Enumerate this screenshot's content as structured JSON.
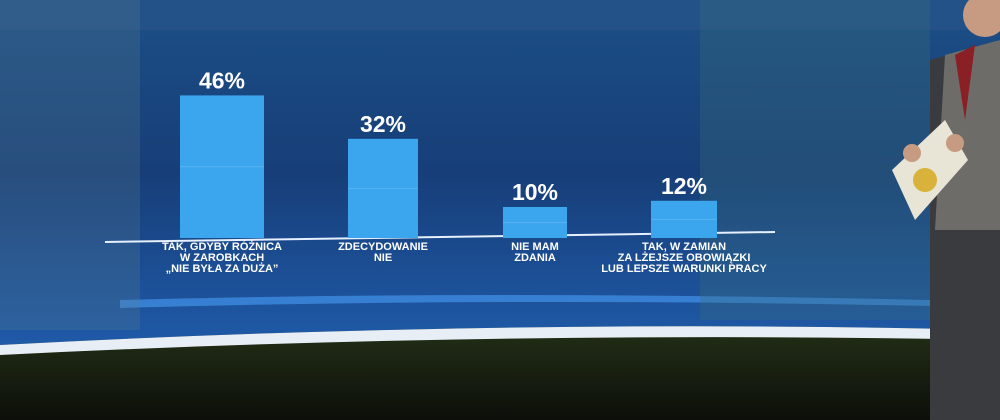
{
  "chart_data": {
    "type": "bar",
    "categories": [
      "TAK, GDYBY RÓŻNICA\nW ZAROBKACH\n„NIE BYŁA ZA DUŻA”",
      "ZDECYDOWANIE\nNIE",
      "NIE MAM\nZDANIA",
      "TAK, W ZAMIAN\nZA LŻEJSZE OBOWIĄZKI\nLUB LEPSZE WARUNKI PRACY"
    ],
    "values": [
      46,
      32,
      10,
      12
    ],
    "value_labels": [
      "46%",
      "32%",
      "10%",
      "12%"
    ],
    "color": "#3ba6ee"
  }
}
